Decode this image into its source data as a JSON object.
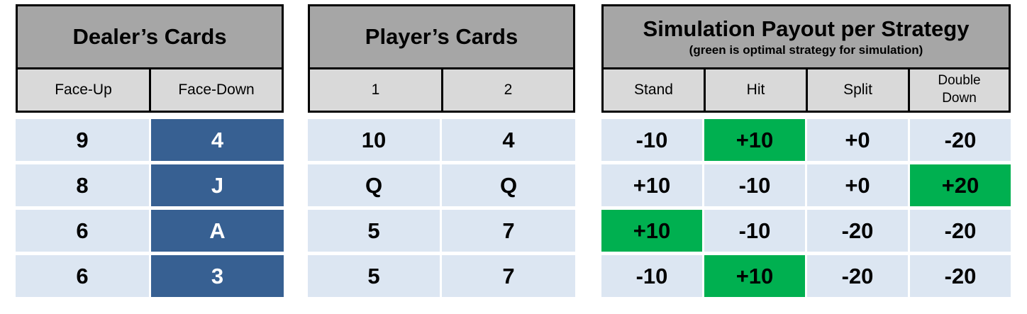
{
  "dealer": {
    "title": "Dealer’s Cards",
    "columns": [
      "Face-Up",
      "Face-Down"
    ],
    "rows": [
      {
        "face_up": "9",
        "face_down": "4"
      },
      {
        "face_up": "8",
        "face_down": "J"
      },
      {
        "face_up": "6",
        "face_down": "A"
      },
      {
        "face_up": "6",
        "face_down": "3"
      }
    ]
  },
  "player": {
    "title": "Player’s Cards",
    "columns": [
      "1",
      "2"
    ],
    "rows": [
      {
        "card1": "10",
        "card2": "4"
      },
      {
        "card1": "Q",
        "card2": "Q"
      },
      {
        "card1": "5",
        "card2": "7"
      },
      {
        "card1": "5",
        "card2": "7"
      }
    ]
  },
  "payout": {
    "title": "Simulation Payout per Strategy",
    "subtitle": "(green is optimal strategy for simulation)",
    "columns": [
      "Stand",
      "Hit",
      "Split",
      "Double Down"
    ],
    "column_double_line1": "Double",
    "column_double_line2": "Down",
    "rows": [
      {
        "values": [
          "-10",
          "+10",
          "+0",
          "-20"
        ],
        "optimal": 1
      },
      {
        "values": [
          "+10",
          "-10",
          "+0",
          "+20"
        ],
        "optimal": 3
      },
      {
        "values": [
          "+10",
          "-10",
          "-20",
          "-20"
        ],
        "optimal": 0
      },
      {
        "values": [
          "-10",
          "+10",
          "-20",
          "-20"
        ],
        "optimal": 1
      }
    ]
  },
  "colors": {
    "header_dark": "#a6a6a6",
    "header_light": "#d9d9d9",
    "cell_light": "#dce6f2",
    "cell_dark": "#376092",
    "optimal_green": "#00b050"
  }
}
